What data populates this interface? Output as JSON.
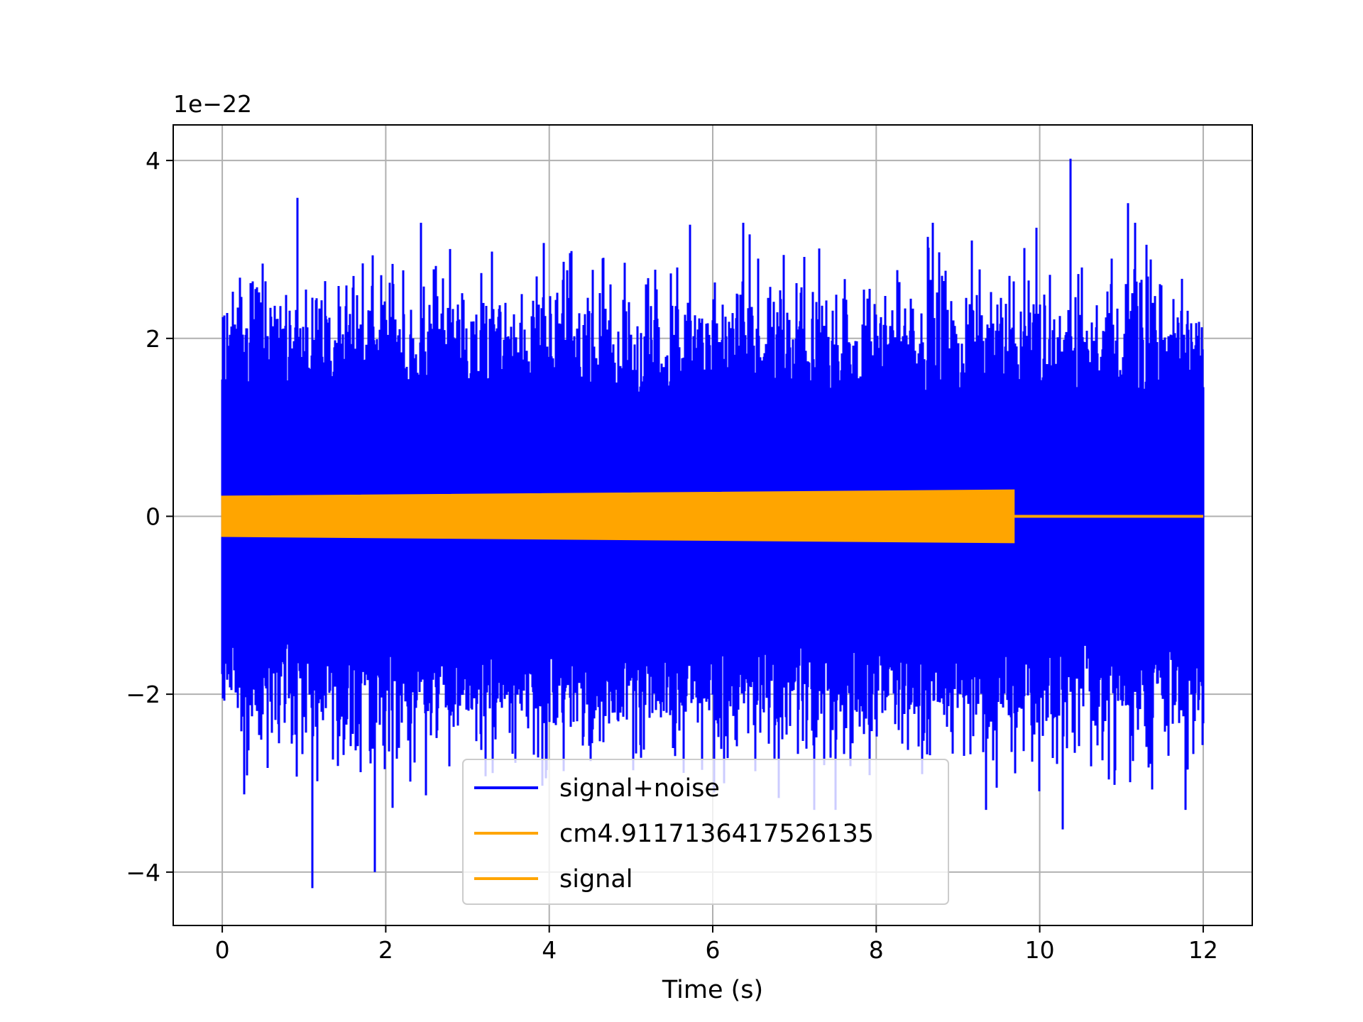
{
  "chart_data": {
    "type": "line",
    "title": "",
    "xlabel": "Time (s)",
    "ylabel": "",
    "offset_label": "1e−22",
    "xlim": [
      -0.6,
      12.6
    ],
    "ylim": [
      -4.6,
      4.4
    ],
    "xticks": [
      0,
      2,
      4,
      6,
      8,
      10,
      12
    ],
    "yticks": [
      -4,
      -2,
      0,
      2,
      4
    ],
    "xtick_labels": [
      "0",
      "2",
      "4",
      "6",
      "8",
      "10",
      "12"
    ],
    "ytick_labels": [
      "−4",
      "−2",
      "0",
      "2",
      "4"
    ],
    "grid": true,
    "legend_position": "lower center",
    "series": [
      {
        "name": "signal+noise",
        "color": "#0000ff",
        "description_points": {
          "t_range": [
            0,
            12
          ],
          "approx_max": 4.02,
          "approx_min": -4.18,
          "peaks": [
            {
              "t": 0.92,
              "y": 3.58
            },
            {
              "t": 10.38,
              "y": 4.02
            },
            {
              "t": 11.08,
              "y": 3.52
            },
            {
              "t": 1.1,
              "y": -4.18
            },
            {
              "t": 1.87,
              "y": -4.0
            },
            {
              "t": 10.28,
              "y": -3.52
            }
          ]
        }
      },
      {
        "name": "cm4.9117136417526135",
        "color": "#ffa500"
      },
      {
        "name": "signal",
        "color": "#ffa500",
        "envelope": [
          {
            "t": 0.0,
            "amp": 0.22
          },
          {
            "t": 9.68,
            "amp": 0.29
          }
        ],
        "end_t": 9.68
      }
    ]
  }
}
